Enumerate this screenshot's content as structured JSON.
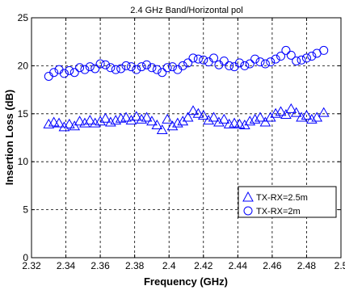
{
  "chart_data": {
    "type": "scatter",
    "title": "2.4 GHz Band/Horizontal pol",
    "xlabel": "Frequency (GHz)",
    "ylabel": "Insertion Loss (dB)",
    "xlim": [
      2.32,
      2.5
    ],
    "ylim": [
      0,
      25
    ],
    "xticks": [
      "2.32",
      "2.34",
      "2.36",
      "2.38",
      "2.4",
      "2.42",
      "2.44",
      "2.46",
      "2.48",
      "2.5"
    ],
    "yticks": [
      "0",
      "5",
      "10",
      "15",
      "20",
      "25"
    ],
    "grid": true,
    "legend_position": "lower-right",
    "color": "#0000ff",
    "series": [
      {
        "name": "TX-RX=2.5m",
        "marker": "triangle",
        "x": [
          2.33,
          2.333,
          2.336,
          2.339,
          2.342,
          2.345,
          2.348,
          2.351,
          2.354,
          2.357,
          2.36,
          2.363,
          2.366,
          2.369,
          2.372,
          2.375,
          2.378,
          2.381,
          2.384,
          2.387,
          2.39,
          2.393,
          2.396,
          2.399,
          2.402,
          2.405,
          2.408,
          2.411,
          2.414,
          2.417,
          2.42,
          2.423,
          2.426,
          2.429,
          2.432,
          2.435,
          2.438,
          2.441,
          2.444,
          2.447,
          2.45,
          2.453,
          2.456,
          2.459,
          2.462,
          2.465,
          2.468,
          2.471,
          2.474,
          2.477,
          2.48,
          2.483,
          2.486,
          2.49
        ],
        "y": [
          13.9,
          14.1,
          14.0,
          13.6,
          13.9,
          13.7,
          14.2,
          14.0,
          14.3,
          14.0,
          14.2,
          14.5,
          14.1,
          14.3,
          14.5,
          14.6,
          14.3,
          14.7,
          14.4,
          14.6,
          14.2,
          13.8,
          13.3,
          14.4,
          13.7,
          14.0,
          14.2,
          14.6,
          15.3,
          15.0,
          14.8,
          14.3,
          14.6,
          14.1,
          14.4,
          13.9,
          14.0,
          13.9,
          13.8,
          14.2,
          14.4,
          14.6,
          14.1,
          14.6,
          15.0,
          15.2,
          14.9,
          15.5,
          15.1,
          14.6,
          14.8,
          14.4,
          14.6,
          15.1
        ]
      },
      {
        "name": "TX-RX=2m",
        "marker": "circle",
        "x": [
          2.33,
          2.333,
          2.336,
          2.339,
          2.342,
          2.345,
          2.348,
          2.351,
          2.354,
          2.357,
          2.36,
          2.363,
          2.366,
          2.369,
          2.372,
          2.375,
          2.378,
          2.381,
          2.384,
          2.387,
          2.39,
          2.393,
          2.396,
          2.399,
          2.402,
          2.405,
          2.408,
          2.411,
          2.414,
          2.417,
          2.42,
          2.423,
          2.426,
          2.429,
          2.432,
          2.435,
          2.438,
          2.441,
          2.444,
          2.447,
          2.45,
          2.453,
          2.456,
          2.459,
          2.462,
          2.465,
          2.468,
          2.471,
          2.474,
          2.477,
          2.48,
          2.483,
          2.486,
          2.49
        ],
        "y": [
          18.9,
          19.3,
          19.6,
          19.2,
          19.5,
          19.3,
          19.8,
          19.6,
          19.9,
          19.7,
          20.2,
          20.1,
          19.8,
          19.6,
          19.7,
          20.0,
          19.9,
          19.6,
          19.9,
          20.1,
          19.8,
          19.6,
          19.3,
          19.8,
          19.9,
          19.6,
          20.0,
          20.3,
          20.8,
          20.7,
          20.6,
          20.4,
          20.8,
          20.1,
          20.5,
          20.0,
          19.9,
          20.3,
          20.0,
          20.2,
          20.7,
          20.4,
          20.2,
          20.4,
          20.7,
          21.0,
          21.6,
          21.1,
          20.5,
          20.6,
          20.8,
          21.0,
          21.3,
          21.6
        ]
      }
    ]
  }
}
